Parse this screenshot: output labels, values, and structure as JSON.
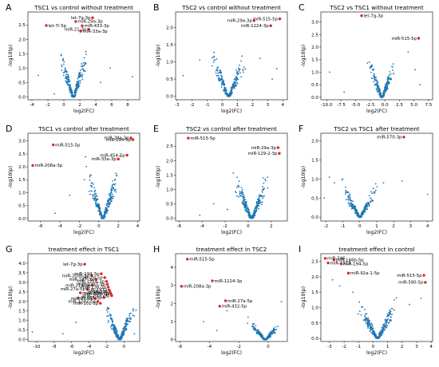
{
  "figure": {
    "colors": {
      "point": "#1f77b4",
      "highlight": "#d62728",
      "annotation_line": "#444444"
    }
  },
  "chart_data": [
    {
      "type": "scatter",
      "letter": "A",
      "title": "TSC1 vs control without treatment",
      "xlabel": "log2(FC)",
      "ylabel": "-log10(p)",
      "xlim": [
        -4.5,
        9.5
      ],
      "ylim": [
        -0.1,
        2.95
      ],
      "xticks": [
        -4,
        -2,
        0,
        2,
        4,
        6,
        8
      ],
      "yticks": [
        0.0,
        0.5,
        1.0,
        1.5,
        2.0,
        2.5
      ],
      "cluster": {
        "peak_x": 1.2,
        "spread": 0.9,
        "max_y": 2.1,
        "n": 260
      },
      "outliers": [
        [
          -3.2,
          0.75
        ],
        [
          8.6,
          0.7
        ],
        [
          5.8,
          1.0
        ],
        [
          -1.2,
          0.1
        ],
        [
          4.6,
          0.5
        ]
      ],
      "highlights": [
        {
          "x": -2.2,
          "y": 2.48,
          "label": "let-7i-5p"
        },
        {
          "x": 1.5,
          "y": 2.62,
          "label": "miR-29a-3p"
        },
        {
          "x": 3.6,
          "y": 2.75,
          "label": "let-7g-3p"
        },
        {
          "x": 2.3,
          "y": 2.47,
          "label": "miR-433-3p"
        },
        {
          "x": 3.1,
          "y": 2.35,
          "label": "miR-21-3p"
        },
        {
          "x": 2.1,
          "y": 2.28,
          "label": "miR-33a-3p"
        }
      ]
    },
    {
      "type": "scatter",
      "letter": "B",
      "title": "TSC2 vs control without treatment",
      "xlabel": "log2(FC)",
      "ylabel": "-log10(p)",
      "xlim": [
        -3.1,
        4.3
      ],
      "ylim": [
        -0.1,
        2.45
      ],
      "xticks": [
        -3,
        -2,
        -1,
        0,
        1,
        2,
        3,
        4
      ],
      "yticks": [
        0.0,
        0.5,
        1.0,
        1.5,
        2.0
      ],
      "cluster": {
        "peak_x": 0.4,
        "spread": 0.6,
        "max_y": 1.7,
        "n": 260
      },
      "outliers": [
        [
          -2.6,
          0.6
        ],
        [
          3.3,
          0.5
        ],
        [
          -1.5,
          1.05
        ],
        [
          2.5,
          1.1
        ],
        [
          3.6,
          0.8
        ]
      ],
      "highlights": [
        {
          "x": 3.8,
          "y": 2.25,
          "label": "miR-515-5p"
        },
        {
          "x": 2.1,
          "y": 2.2,
          "label": "miR-29a-3p"
        },
        {
          "x": 3.2,
          "y": 2.05,
          "label": "miR-1224-3p"
        }
      ]
    },
    {
      "type": "scatter",
      "letter": "C",
      "title": "TSC2 vs TSC1 without treatment",
      "xlabel": "log2(FC)",
      "ylabel": "-log10(p)",
      "xlim": [
        -11,
        8.2
      ],
      "ylim": [
        -0.1,
        3.4
      ],
      "xticks": [
        -10.0,
        -7.5,
        -5.0,
        -2.5,
        0.0,
        2.5,
        5.0,
        7.5
      ],
      "yticks": [
        0.0,
        0.5,
        1.0,
        1.5,
        2.0,
        2.5,
        3.0
      ],
      "cluster": {
        "peak_x": -0.5,
        "spread": 1.2,
        "max_y": 1.9,
        "n": 260
      },
      "outliers": [
        [
          -9.5,
          1.0
        ],
        [
          -7.0,
          0.2
        ],
        [
          6.0,
          0.5
        ],
        [
          4.0,
          1.8
        ],
        [
          5.2,
          1.1
        ]
      ],
      "highlights": [
        {
          "x": -4.0,
          "y": 3.25,
          "label": "let-7g-3p"
        },
        {
          "x": 5.8,
          "y": 2.35,
          "label": "miR-515-5p"
        }
      ]
    },
    {
      "type": "scatter",
      "letter": "D",
      "title": "TSC1 vs control after treatment",
      "xlabel": "log2(FC)",
      "ylabel": "-log10(p)",
      "xlim": [
        -7.3,
        4.2
      ],
      "ylim": [
        -0.1,
        3.3
      ],
      "xticks": [
        -6,
        -4,
        -2,
        0,
        2,
        4
      ],
      "yticks": [
        0.0,
        0.5,
        1.0,
        1.5,
        2.0,
        2.5,
        3.0
      ],
      "cluster": {
        "peak_x": 0.4,
        "spread": 0.9,
        "max_y": 2.6,
        "n": 280
      },
      "outliers": [
        [
          -3.0,
          0.9
        ],
        [
          -4.5,
          0.2
        ],
        [
          -1.5,
          1.5
        ],
        [
          2.2,
          2.4
        ]
      ],
      "highlights": [
        {
          "x": -6.8,
          "y": 2.05,
          "label": "miR-208a-3p"
        },
        {
          "x": -4.7,
          "y": 2.85,
          "label": "miR-515-5p"
        },
        {
          "x": 3.3,
          "y": 3.12,
          "label": "miR-29a-3p"
        },
        {
          "x": 3.5,
          "y": 3.05,
          "label": "miR-194-5p"
        },
        {
          "x": 2.9,
          "y": 2.45,
          "label": "miR-454-5p"
        },
        {
          "x": 2.0,
          "y": 2.3,
          "label": "miR-33a-3p"
        }
      ]
    },
    {
      "type": "scatter",
      "letter": "E",
      "title": "TSC2 vs control after treatment",
      "xlabel": "log2(FC)",
      "ylabel": "-log10(p)",
      "xlim": [
        -6.3,
        3.4
      ],
      "ylim": [
        -0.1,
        2.95
      ],
      "xticks": [
        -6,
        -4,
        -2,
        0,
        2
      ],
      "yticks": [
        0.0,
        0.5,
        1.0,
        1.5,
        2.0,
        2.5
      ],
      "cluster": {
        "peak_x": 0.3,
        "spread": 0.8,
        "max_y": 2.0,
        "n": 280
      },
      "outliers": [
        [
          -3.0,
          0.5
        ],
        [
          -1.8,
          0.3
        ],
        [
          -4.2,
          0.1
        ],
        [
          1.3,
          1.4
        ]
      ],
      "highlights": [
        {
          "x": -5.2,
          "y": 2.78,
          "label": "miR-515-5p"
        },
        {
          "x": 2.6,
          "y": 2.45,
          "label": "miR-29a-3p"
        },
        {
          "x": 2.7,
          "y": 2.25,
          "label": "miR-129-2-3p"
        }
      ]
    },
    {
      "type": "scatter",
      "letter": "F",
      "title": "TSC2 vs TSC1 after treatment",
      "xlabel": "log2(FC)",
      "ylabel": "-log10(p)",
      "xlim": [
        -2.3,
        4.3
      ],
      "ylim": [
        -0.1,
        2.2
      ],
      "xticks": [
        -2,
        -1,
        0,
        1,
        2,
        3,
        4
      ],
      "yticks": [
        0.0,
        0.5,
        1.0,
        1.5,
        2.0
      ],
      "cluster": {
        "peak_x": 0.0,
        "spread": 0.55,
        "max_y": 1.15,
        "n": 260
      },
      "outliers": [
        [
          -1.8,
          1.05
        ],
        [
          -1.5,
          0.9
        ],
        [
          1.4,
          0.9
        ],
        [
          2.5,
          0.95
        ],
        [
          4.0,
          0.6
        ],
        [
          -2.1,
          0.5
        ]
      ],
      "highlights": [
        {
          "x": 2.6,
          "y": 2.1,
          "label": "miR-570-3p"
        }
      ]
    },
    {
      "type": "scatter",
      "letter": "G",
      "title": "treatment effect in TSC1",
      "xlabel": "log2(FC)",
      "ylabel": "-log10(p)",
      "xlim": [
        -11,
        1.8
      ],
      "ylim": [
        -0.1,
        4.5
      ],
      "xticks": [
        -10,
        -8,
        -6,
        -4,
        -2,
        0
      ],
      "yticks": [
        0.0,
        0.5,
        1.0,
        1.5,
        2.0,
        2.5,
        3.0,
        3.5,
        4.0
      ],
      "cluster": {
        "peak_x": -0.5,
        "spread": 0.9,
        "max_y": 2.5,
        "n": 280
      },
      "outliers": [
        [
          -10.5,
          0.4
        ],
        [
          -7.0,
          0.3
        ],
        [
          -5.5,
          0.9
        ],
        [
          1.2,
          0.3
        ]
      ],
      "highlights": [
        {
          "x": -4.5,
          "y": 3.95,
          "label": "let-7g-3p"
        },
        {
          "x": -3.7,
          "y": 3.35,
          "label": "miR-200b-5p"
        },
        {
          "x": -3.2,
          "y": 3.15,
          "label": "miR-187-3p"
        },
        {
          "x": -3.6,
          "y": 2.85,
          "label": "miR-214-3p"
        },
        {
          "x": -4.2,
          "y": 2.65,
          "label": "miR-27a-5p"
        },
        {
          "x": -5.0,
          "y": 2.45,
          "label": "miR-208a-3p"
        },
        {
          "x": -3.3,
          "y": 2.15,
          "label": "miR-21-3p"
        },
        {
          "x": -3.0,
          "y": 2.0,
          "label": "miR-1207-5p"
        },
        {
          "x": -2.7,
          "y": 1.9,
          "label": "miR-101-5p"
        },
        {
          "x": -2.3,
          "y": 2.2,
          "label": "miR-433-3p"
        },
        {
          "x": -2.6,
          "y": 3.45,
          "label": "miR-194-3p"
        },
        {
          "x": -2.2,
          "y": 3.25,
          "label": "let-7d-5p"
        },
        {
          "x": -2.0,
          "y": 3.05,
          "label": "miR-1224-3p"
        },
        {
          "x": -1.9,
          "y": 2.9,
          "label": "miR-1237-3p"
        },
        {
          "x": -1.8,
          "y": 2.75,
          "label": "miR-138-5p"
        },
        {
          "x": -1.7,
          "y": 2.6,
          "label": "miR-1972"
        },
        {
          "x": -1.6,
          "y": 2.5,
          "label": "miR-346"
        },
        {
          "x": -1.5,
          "y": 2.4,
          "label": "miR-885-5p"
        },
        {
          "x": -1.4,
          "y": 2.3,
          "label": "miR-200c-3p"
        }
      ]
    },
    {
      "type": "scatter",
      "letter": "H",
      "title": "treatment effect in TSC2",
      "xlabel": "log2(FC)",
      "ylabel": "-log10(p)",
      "xlim": [
        -6.3,
        1.3
      ],
      "ylim": [
        -0.1,
        4.75
      ],
      "xticks": [
        -6,
        -4,
        -2,
        0
      ],
      "yticks": [
        0,
        1,
        2,
        3,
        4
      ],
      "cluster": {
        "peak_x": -0.2,
        "spread": 0.55,
        "max_y": 1.3,
        "n": 240
      },
      "outliers": [
        [
          -3.5,
          0.5
        ],
        [
          -2.8,
          1.6
        ],
        [
          -4.4,
          1.0
        ],
        [
          0.9,
          2.1
        ],
        [
          -1.4,
          0.9
        ]
      ],
      "highlights": [
        {
          "x": -5.5,
          "y": 4.45,
          "label": "miR-515-5p"
        },
        {
          "x": -3.8,
          "y": 3.25,
          "label": "miR-1224-3p"
        },
        {
          "x": -5.9,
          "y": 2.95,
          "label": "miR-208a-3p"
        },
        {
          "x": -2.9,
          "y": 2.15,
          "label": "miR-27a-5p"
        },
        {
          "x": -3.3,
          "y": 1.85,
          "label": "miR-432-5p"
        }
      ]
    },
    {
      "type": "scatter",
      "letter": "I",
      "title": "treatment effect in control",
      "xlabel": "log2(FC)",
      "ylabel": "-log10(p)",
      "xlim": [
        -3.6,
        4.1
      ],
      "ylim": [
        -0.1,
        2.75
      ],
      "xticks": [
        -3,
        -2,
        -1,
        0,
        1,
        2,
        3,
        4
      ],
      "yticks": [
        0.0,
        0.5,
        1.0,
        1.5,
        2.0,
        2.5
      ],
      "cluster": {
        "peak_x": 0.3,
        "spread": 0.7,
        "max_y": 1.6,
        "n": 280
      },
      "outliers": [
        [
          -2.8,
          1.9
        ],
        [
          -2.3,
          1.7
        ],
        [
          -1.4,
          1.5
        ],
        [
          2.5,
          1.1
        ],
        [
          3.3,
          1.3
        ]
      ],
      "highlights": [
        {
          "x": -3.3,
          "y": 2.6,
          "label": "miR-346"
        },
        {
          "x": -2.7,
          "y": 2.55,
          "label": "miR-146b-5p"
        },
        {
          "x": -3.1,
          "y": 2.45,
          "label": "miR-1913"
        },
        {
          "x": -2.2,
          "y": 2.42,
          "label": "miR-194-5p"
        },
        {
          "x": -1.7,
          "y": 2.12,
          "label": "miR-92a-1-5p"
        },
        {
          "x": 3.5,
          "y": 2.05,
          "label": "miR-515-5p"
        },
        {
          "x": 3.6,
          "y": 1.82,
          "label": "miR-590-5p"
        }
      ]
    }
  ]
}
